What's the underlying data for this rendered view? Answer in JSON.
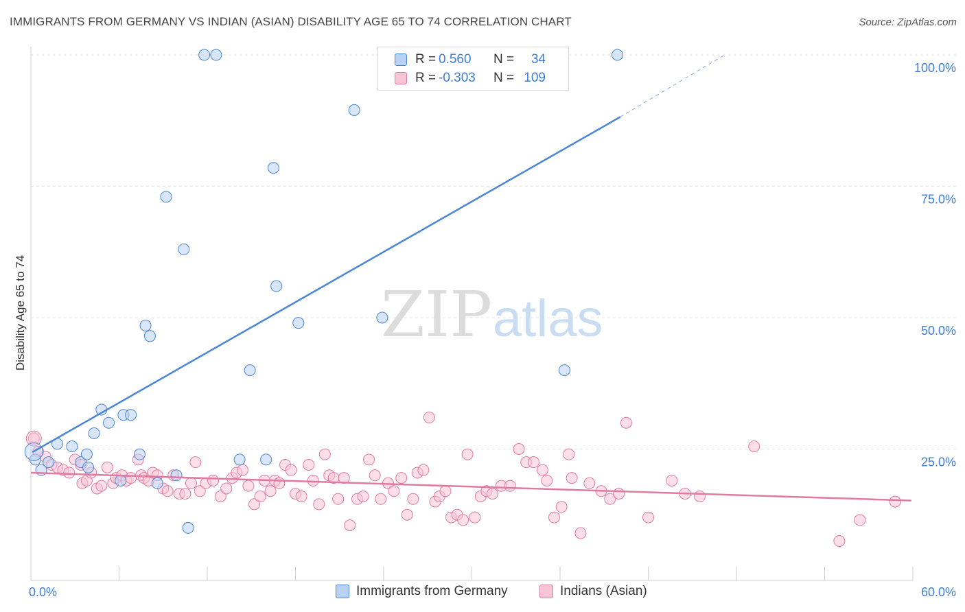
{
  "title": "IMMIGRANTS FROM GERMANY VS INDIAN (ASIAN) DISABILITY AGE 65 TO 74 CORRELATION CHART",
  "source": "Source: ZipAtlas.com",
  "watermark": {
    "zip": "ZIP",
    "atlas": "atlas"
  },
  "legend": [
    {
      "r_label": "R = ",
      "r_value": "0.560",
      "n_label": "N = ",
      "n_value": "34",
      "color": "#4a86d6",
      "fill": "#b9d2f3"
    },
    {
      "r_label": "R = ",
      "r_value": "-0.303",
      "n_label": "N = ",
      "n_value": "109",
      "color": "#e07aa0",
      "fill": "#f9c4d5"
    }
  ],
  "bottom_legend": [
    "Immigrants from Germany",
    "Indians (Asian)"
  ],
  "chart_data": {
    "type": "scatter",
    "title": "IMMIGRANTS FROM GERMANY VS INDIAN (ASIAN) DISABILITY AGE 65 TO 74 CORRELATION CHART",
    "xlabel": "",
    "ylabel": "Disability Age 65 to 74",
    "xlim": [
      0,
      60
    ],
    "ylim": [
      0,
      100
    ],
    "x_tick_labels": [
      "0.0%",
      "60.0%"
    ],
    "y_tick_labels": [
      "25.0%",
      "50.0%",
      "75.0%",
      "100.0%"
    ],
    "y_ticks": [
      25,
      50,
      75,
      100
    ],
    "grid": true,
    "legend_position": "top-center",
    "series": [
      {
        "name": "Immigrants from Germany",
        "color": "#4a86d6",
        "fill": "#b9d2f3",
        "trend": {
          "x": [
            0.1,
            40.1
          ],
          "y": [
            24.4,
            88.2
          ],
          "dashed_to": [
            47.2,
            100.0
          ]
        },
        "points": [
          [
            0.3,
            23.0
          ],
          [
            0.7,
            21.0
          ],
          [
            1.2,
            22.5
          ],
          [
            1.8,
            26.0
          ],
          [
            2.8,
            25.5
          ],
          [
            3.4,
            22.5
          ],
          [
            3.9,
            21.5
          ],
          [
            3.8,
            24.0
          ],
          [
            4.3,
            28.0
          ],
          [
            4.8,
            32.5
          ],
          [
            5.3,
            30.0
          ],
          [
            6.1,
            19.0
          ],
          [
            6.3,
            31.5
          ],
          [
            6.8,
            31.5
          ],
          [
            7.4,
            24.0
          ],
          [
            7.8,
            48.5
          ],
          [
            8.1,
            46.5
          ],
          [
            8.6,
            18.5
          ],
          [
            9.2,
            73.0
          ],
          [
            9.9,
            20.0
          ],
          [
            10.4,
            63.0
          ],
          [
            10.7,
            10.0
          ],
          [
            11.8,
            100.0
          ],
          [
            12.6,
            100.0
          ],
          [
            14.2,
            23.0
          ],
          [
            14.9,
            40.0
          ],
          [
            16.0,
            23.0
          ],
          [
            16.5,
            78.5
          ],
          [
            16.7,
            56.0
          ],
          [
            18.2,
            49.0
          ],
          [
            22.0,
            89.5
          ],
          [
            23.9,
            50.0
          ],
          [
            36.3,
            40.0
          ],
          [
            39.9,
            100.0
          ]
        ]
      },
      {
        "name": "Indians (Asian)",
        "color": "#e07aa0",
        "fill": "#f9c4d5",
        "trend": {
          "x": [
            0.0,
            59.9
          ],
          "y": [
            20.5,
            15.2
          ]
        },
        "points": [
          [
            0.2,
            27.0
          ],
          [
            0.5,
            24.5
          ],
          [
            1.0,
            23.5
          ],
          [
            1.4,
            22.0
          ],
          [
            1.8,
            21.5
          ],
          [
            2.2,
            21.0
          ],
          [
            2.6,
            20.5
          ],
          [
            3.0,
            23.0
          ],
          [
            3.4,
            22.0
          ],
          [
            3.5,
            18.5
          ],
          [
            3.8,
            19.0
          ],
          [
            4.1,
            20.5
          ],
          [
            4.5,
            17.5
          ],
          [
            4.8,
            18.0
          ],
          [
            5.2,
            21.5
          ],
          [
            5.6,
            18.5
          ],
          [
            5.8,
            19.5
          ],
          [
            6.2,
            20.0
          ],
          [
            6.5,
            19.0
          ],
          [
            6.8,
            19.5
          ],
          [
            7.3,
            23.0
          ],
          [
            7.5,
            20.0
          ],
          [
            7.7,
            19.5
          ],
          [
            8.0,
            19.0
          ],
          [
            8.3,
            20.5
          ],
          [
            8.6,
            20.0
          ],
          [
            9.0,
            17.5
          ],
          [
            9.3,
            17.0
          ],
          [
            9.7,
            20.0
          ],
          [
            10.1,
            16.5
          ],
          [
            10.5,
            16.5
          ],
          [
            10.9,
            18.5
          ],
          [
            11.2,
            22.5
          ],
          [
            11.5,
            17.0
          ],
          [
            11.9,
            18.5
          ],
          [
            12.4,
            19.0
          ],
          [
            12.9,
            16.0
          ],
          [
            13.3,
            17.5
          ],
          [
            13.7,
            19.5
          ],
          [
            14.0,
            20.5
          ],
          [
            14.4,
            21.0
          ],
          [
            14.8,
            18.0
          ],
          [
            15.2,
            14.5
          ],
          [
            15.6,
            16.0
          ],
          [
            15.9,
            19.0
          ],
          [
            16.3,
            17.0
          ],
          [
            16.6,
            19.0
          ],
          [
            16.9,
            18.5
          ],
          [
            17.3,
            22.0
          ],
          [
            17.7,
            21.0
          ],
          [
            18.0,
            16.5
          ],
          [
            18.4,
            16.0
          ],
          [
            18.9,
            22.0
          ],
          [
            19.2,
            19.0
          ],
          [
            19.6,
            14.5
          ],
          [
            20.0,
            24.0
          ],
          [
            20.3,
            20.0
          ],
          [
            20.6,
            19.5
          ],
          [
            20.9,
            15.5
          ],
          [
            21.3,
            19.5
          ],
          [
            21.7,
            10.5
          ],
          [
            22.2,
            15.5
          ],
          [
            22.6,
            16.0
          ],
          [
            23.0,
            23.0
          ],
          [
            23.4,
            20.0
          ],
          [
            23.8,
            15.5
          ],
          [
            24.3,
            18.5
          ],
          [
            24.7,
            17.0
          ],
          [
            25.2,
            19.5
          ],
          [
            25.6,
            12.5
          ],
          [
            26.0,
            15.5
          ],
          [
            26.3,
            20.5
          ],
          [
            26.7,
            21.0
          ],
          [
            27.1,
            31.0
          ],
          [
            27.5,
            15.0
          ],
          [
            27.8,
            16.0
          ],
          [
            28.2,
            17.0
          ],
          [
            28.6,
            12.0
          ],
          [
            29.0,
            12.5
          ],
          [
            29.4,
            11.5
          ],
          [
            29.7,
            24.0
          ],
          [
            30.2,
            12.0
          ],
          [
            30.6,
            16.0
          ],
          [
            31.0,
            17.0
          ],
          [
            31.4,
            16.5
          ],
          [
            32.0,
            18.0
          ],
          [
            32.6,
            18.0
          ],
          [
            33.2,
            25.0
          ],
          [
            33.7,
            22.5
          ],
          [
            34.2,
            22.5
          ],
          [
            34.8,
            21.0
          ],
          [
            35.1,
            19.0
          ],
          [
            35.6,
            12.0
          ],
          [
            36.1,
            14.0
          ],
          [
            36.6,
            24.0
          ],
          [
            36.8,
            19.5
          ],
          [
            37.4,
            9.0
          ],
          [
            38.0,
            18.5
          ],
          [
            38.8,
            17.0
          ],
          [
            39.4,
            15.5
          ],
          [
            40.0,
            16.5
          ],
          [
            40.5,
            30.0
          ],
          [
            42.0,
            12.0
          ],
          [
            43.6,
            19.0
          ],
          [
            44.5,
            16.5
          ],
          [
            45.5,
            16.0
          ],
          [
            49.2,
            25.5
          ],
          [
            55.0,
            7.5
          ],
          [
            56.4,
            11.5
          ],
          [
            58.8,
            15.0
          ]
        ]
      }
    ]
  }
}
